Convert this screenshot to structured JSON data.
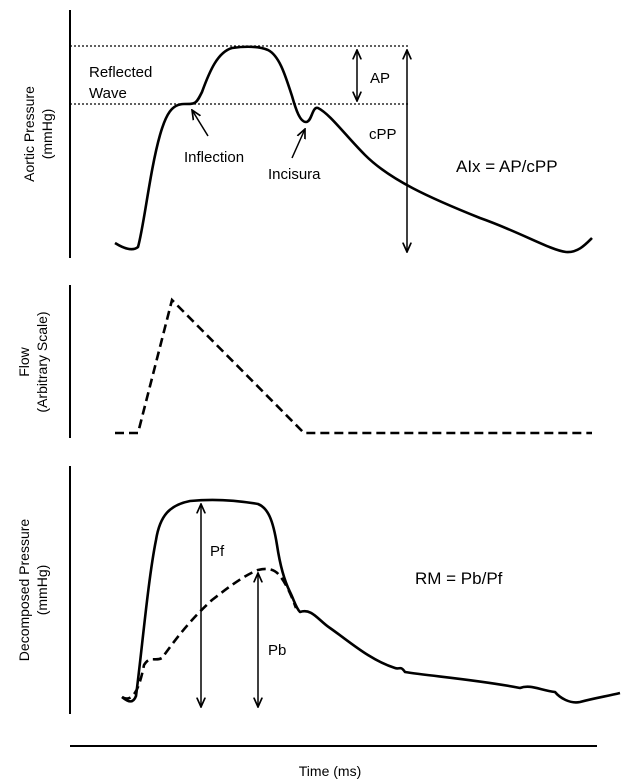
{
  "panels": {
    "aortic": {
      "ylabel_line1": "Aortic Pressure",
      "ylabel_line2": "(mmHg)",
      "labels": {
        "reflected_wave_line1": "Reflected",
        "reflected_wave_line2": "Wave",
        "ap": "AP",
        "cpp": "cPP",
        "inflection": "Inflection",
        "incisura": "Incisura",
        "formula": "AIx = AP/cPP"
      }
    },
    "flow": {
      "ylabel_line1": "Flow",
      "ylabel_line2": "(Arbitrary Scale)"
    },
    "decomposed": {
      "ylabel_line1": "Decomposed Pressure",
      "ylabel_line2": "(mmHg)",
      "labels": {
        "pf": "Pf",
        "pb": "Pb",
        "formula": "RM = Pb/Pf"
      }
    }
  },
  "xlabel": "Time (ms)"
}
